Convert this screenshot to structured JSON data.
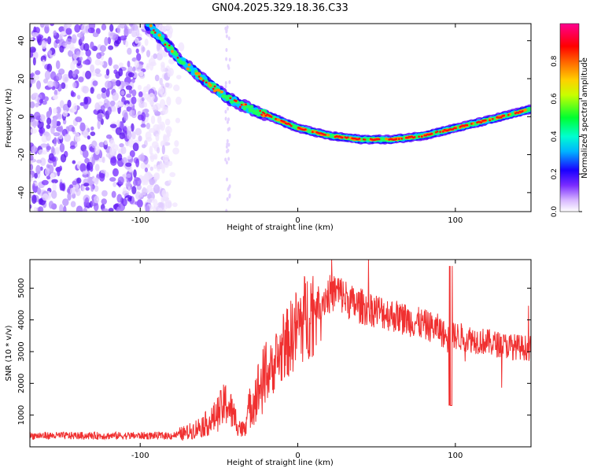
{
  "title": "GN04.2025.329.18.36.C33",
  "chart_data": [
    {
      "type": "heatmap",
      "title": "GN04.2025.329.18.36.C33",
      "xlabel": "Height of straight line (km)",
      "ylabel": "Frequency (Hz)",
      "xlim": [
        -170,
        148
      ],
      "ylim": [
        -50,
        49
      ],
      "xticks": [
        -100,
        0,
        100
      ],
      "yticks": [
        40,
        20,
        0,
        -20,
        -40
      ],
      "colorbar": {
        "label": "Normalized spectral amplitude",
        "range": [
          0,
          1
        ],
        "ticks": [
          0.0,
          0.2,
          0.4,
          0.6,
          0.8
        ],
        "tick_labels": [
          "0.0",
          "0.2",
          "0.4",
          "0.6",
          "0.8"
        ],
        "colors": [
          "#ffffff",
          "#c8a0ff",
          "#6a00ff",
          "#0000ff",
          "#00e5ff",
          "#00ff40",
          "#ffff00",
          "#ff7a00",
          "#ff0000",
          "#ff0080"
        ]
      },
      "ridge": {
        "description_points_km_hz": [
          [
            -95,
            48
          ],
          [
            -85,
            40
          ],
          [
            -75,
            30
          ],
          [
            -60,
            20
          ],
          [
            -45,
            10
          ],
          [
            -30,
            4
          ],
          [
            -20,
            1
          ],
          [
            0,
            -6
          ],
          [
            20,
            -10
          ],
          [
            40,
            -12
          ],
          [
            60,
            -12
          ],
          [
            80,
            -10
          ],
          [
            100,
            -6
          ],
          [
            120,
            -2
          ],
          [
            148,
            4
          ]
        ]
      },
      "noise_region": {
        "x_range": [
          -170,
          -80
        ],
        "freq_range": [
          -50,
          49
        ]
      }
    },
    {
      "type": "line",
      "xlabel": "Height of straight line (km)",
      "ylabel": "SNR (10 * v/v)",
      "xlim": [
        -170,
        148
      ],
      "ylim": [
        0,
        5900
      ],
      "xticks": [
        -100,
        0,
        100
      ],
      "yticks": [
        1000,
        2000,
        3000,
        4000,
        5000
      ],
      "line_color": "#f03030",
      "envelope": {
        "x": [
          -170,
          -80,
          -70,
          -55,
          -45,
          -40,
          -35,
          -30,
          -25,
          -20,
          -10,
          0,
          10,
          20,
          25,
          35,
          50,
          70,
          90,
          95,
          100,
          110,
          130,
          148
        ],
        "y": [
          350,
          350,
          450,
          800,
          1400,
          900,
          500,
          1300,
          1800,
          2200,
          3000,
          3800,
          4400,
          4800,
          4900,
          4500,
          4300,
          4000,
          3700,
          3400,
          3500,
          3400,
          3200,
          3100
        ]
      }
    }
  ]
}
